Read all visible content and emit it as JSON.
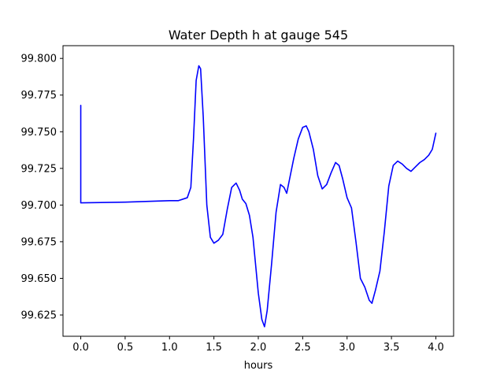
{
  "chart_data": {
    "type": "line",
    "title": "Water Depth h at gauge 545",
    "xlabel": "hours",
    "ylabel": "",
    "xlim": [
      -0.2,
      4.2
    ],
    "ylim": [
      99.6105,
      99.8087
    ],
    "grid": false,
    "legend": "none",
    "x_ticks": [
      {
        "value": 0.0,
        "label": "0.0"
      },
      {
        "value": 0.5,
        "label": "0.5"
      },
      {
        "value": 1.0,
        "label": "1.0"
      },
      {
        "value": 1.5,
        "label": "1.5"
      },
      {
        "value": 2.0,
        "label": "2.0"
      },
      {
        "value": 2.5,
        "label": "2.5"
      },
      {
        "value": 3.0,
        "label": "3.0"
      },
      {
        "value": 3.5,
        "label": "3.5"
      },
      {
        "value": 4.0,
        "label": "4.0"
      }
    ],
    "y_ticks": [
      {
        "value": 99.625,
        "label": "99.625"
      },
      {
        "value": 99.65,
        "label": "99.650"
      },
      {
        "value": 99.675,
        "label": "99.675"
      },
      {
        "value": 99.7,
        "label": "99.700"
      },
      {
        "value": 99.725,
        "label": "99.725"
      },
      {
        "value": 99.75,
        "label": "99.750"
      },
      {
        "value": 99.775,
        "label": "99.775"
      },
      {
        "value": 99.8,
        "label": "99.800"
      }
    ],
    "series": [
      {
        "color": "#0000ff",
        "x": [
          0,
          0,
          0.005,
          0.5,
          1.0,
          1.1,
          1.2,
          1.24,
          1.27,
          1.3,
          1.33,
          1.35,
          1.38,
          1.42,
          1.46,
          1.5,
          1.55,
          1.6,
          1.65,
          1.7,
          1.75,
          1.79,
          1.82,
          1.86,
          1.9,
          1.94,
          2.0,
          2.04,
          2.07,
          2.1,
          2.15,
          2.2,
          2.25,
          2.29,
          2.32,
          2.36,
          2.4,
          2.45,
          2.5,
          2.54,
          2.57,
          2.62,
          2.67,
          2.72,
          2.77,
          2.82,
          2.87,
          2.91,
          2.95,
          3.0,
          3.05,
          3.1,
          3.15,
          3.2,
          3.25,
          3.28,
          3.32,
          3.37,
          3.42,
          3.47,
          3.52,
          3.57,
          3.62,
          3.67,
          3.72,
          3.77,
          3.82,
          3.87,
          3.92,
          3.96,
          4.0
        ],
        "y": [
          99.768,
          99.7015,
          99.7015,
          99.702,
          99.703,
          99.703,
          99.705,
          99.712,
          99.745,
          99.785,
          99.795,
          99.793,
          99.76,
          99.7,
          99.678,
          99.674,
          99.676,
          99.68,
          99.697,
          99.712,
          99.715,
          99.71,
          99.704,
          99.701,
          99.693,
          99.678,
          99.64,
          99.622,
          99.617,
          99.628,
          99.66,
          99.695,
          99.714,
          99.712,
          99.708,
          99.72,
          99.732,
          99.745,
          99.753,
          99.754,
          99.75,
          99.738,
          99.72,
          99.711,
          99.714,
          99.722,
          99.729,
          99.727,
          99.718,
          99.705,
          99.698,
          99.675,
          99.65,
          99.644,
          99.635,
          99.633,
          99.642,
          99.655,
          99.682,
          99.713,
          99.727,
          99.73,
          99.728,
          99.725,
          99.723,
          99.726,
          99.729,
          99.731,
          99.734,
          99.738,
          99.749
        ]
      }
    ]
  }
}
